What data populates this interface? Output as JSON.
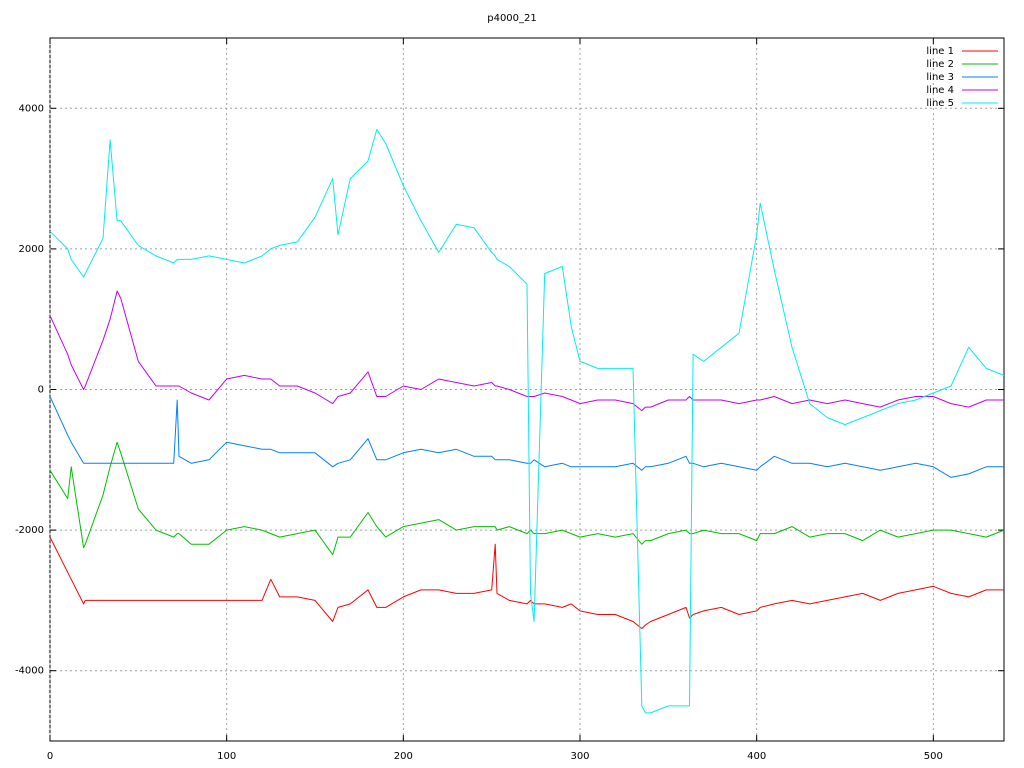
{
  "chart_data": {
    "type": "line",
    "title": "p4000_21",
    "x": [
      0,
      10,
      12,
      19,
      20,
      30,
      34,
      38,
      40,
      50,
      60,
      70,
      72,
      73,
      80,
      90,
      100,
      110,
      120,
      125,
      130,
      140,
      150,
      160,
      163,
      170,
      180,
      185,
      190,
      200,
      210,
      220,
      230,
      240,
      250,
      252,
      253,
      260,
      270,
      272,
      274,
      280,
      290,
      295,
      300,
      310,
      320,
      330,
      335,
      337,
      340,
      350,
      360,
      362,
      364,
      370,
      380,
      390,
      400,
      402,
      410,
      420,
      430,
      440,
      450,
      460,
      470,
      480,
      490,
      500,
      510,
      520,
      530,
      540
    ],
    "series": [
      {
        "name": "line 1",
        "color": "#ff0000",
        "values": [
          -2100,
          -2600,
          -2700,
          -3050,
          -3000,
          -3000,
          -3000,
          -3000,
          -3000,
          -3000,
          -3000,
          -3000,
          -3000,
          -3000,
          -3000,
          -3000,
          -3000,
          -3000,
          -3000,
          -2700,
          -2950,
          -2950,
          -3000,
          -3300,
          -3100,
          -3050,
          -2850,
          -3100,
          -3100,
          -2950,
          -2850,
          -2850,
          -2900,
          -2900,
          -2850,
          -2200,
          -2900,
          -3000,
          -3050,
          -3000,
          -3050,
          -3050,
          -3100,
          -3050,
          -3150,
          -3200,
          -3200,
          -3300,
          -3400,
          -3350,
          -3300,
          -3200,
          -3100,
          -3250,
          -3200,
          -3150,
          -3100,
          -3200,
          -3150,
          -3100,
          -3050,
          -3000,
          -3050,
          -3000,
          -2950,
          -2900,
          -3000,
          -2900,
          -2850,
          -2800,
          -2900,
          -2950,
          -2850,
          -2850
        ]
      },
      {
        "name": "line 2",
        "color": "#00c000",
        "values": [
          -1150,
          -1550,
          -1100,
          -2250,
          -2200,
          -1500,
          -1100,
          -750,
          -900,
          -1700,
          -2000,
          -2100,
          -2050,
          -2050,
          -2200,
          -2200,
          -2000,
          -1950,
          -2000,
          -2050,
          -2100,
          -2050,
          -2000,
          -2350,
          -2100,
          -2100,
          -1750,
          -1950,
          -2100,
          -1950,
          -1900,
          -1850,
          -2000,
          -1950,
          -1950,
          -1950,
          -2000,
          -1950,
          -2050,
          -2000,
          -2050,
          -2050,
          -2000,
          -2050,
          -2100,
          -2050,
          -2100,
          -2050,
          -2200,
          -2150,
          -2150,
          -2050,
          -2000,
          -2050,
          -2050,
          -2000,
          -2050,
          -2050,
          -2150,
          -2050,
          -2050,
          -1950,
          -2100,
          -2050,
          -2050,
          -2150,
          -2000,
          -2100,
          -2050,
          -2000,
          -2000,
          -2050,
          -2100,
          -2000
        ]
      },
      {
        "name": "line 3",
        "color": "#0080ff",
        "values": [
          -100,
          -650,
          -750,
          -1050,
          -1050,
          -1050,
          -1050,
          -1050,
          -1050,
          -1050,
          -1050,
          -1050,
          -150,
          -950,
          -1050,
          -1000,
          -750,
          -800,
          -850,
          -850,
          -900,
          -900,
          -900,
          -1100,
          -1050,
          -1000,
          -700,
          -1000,
          -1000,
          -900,
          -850,
          -900,
          -850,
          -950,
          -950,
          -1000,
          -1000,
          -1000,
          -1050,
          -1050,
          -1000,
          -1100,
          -1050,
          -1100,
          -1100,
          -1100,
          -1100,
          -1050,
          -1150,
          -1100,
          -1100,
          -1050,
          -950,
          -1050,
          -1050,
          -1100,
          -1050,
          -1100,
          -1150,
          -1100,
          -950,
          -1050,
          -1050,
          -1100,
          -1050,
          -1100,
          -1150,
          -1100,
          -1050,
          -1100,
          -1250,
          -1200,
          -1100,
          -1100
        ]
      },
      {
        "name": "line 4",
        "color": "#c000ff",
        "values": [
          1050,
          500,
          350,
          0,
          50,
          700,
          1000,
          1400,
          1300,
          400,
          50,
          50,
          50,
          50,
          -50,
          -150,
          150,
          200,
          150,
          150,
          50,
          50,
          -50,
          -200,
          -100,
          -50,
          250,
          -100,
          -100,
          50,
          0,
          150,
          100,
          50,
          100,
          50,
          50,
          0,
          -100,
          -100,
          -100,
          -50,
          -100,
          -150,
          -200,
          -150,
          -150,
          -200,
          -300,
          -250,
          -250,
          -150,
          -150,
          -100,
          -150,
          -150,
          -150,
          -200,
          -150,
          -150,
          -100,
          -200,
          -150,
          -200,
          -150,
          -200,
          -250,
          -150,
          -100,
          -100,
          -200,
          -250,
          -150,
          -150
        ]
      },
      {
        "name": "line 5",
        "color": "#00eeee",
        "values": [
          2250,
          2000,
          1850,
          1600,
          1650,
          2150,
          3550,
          2400,
          2400,
          2050,
          1900,
          1800,
          1850,
          1850,
          1850,
          1900,
          1850,
          1800,
          1900,
          2000,
          2050,
          2100,
          2450,
          3000,
          2200,
          3000,
          3250,
          3700,
          3500,
          2900,
          2400,
          1950,
          2350,
          2300,
          1950,
          1900,
          1850,
          1750,
          1500,
          -2900,
          -3300,
          1650,
          1750,
          900,
          400,
          300,
          300,
          300,
          -4500,
          -4600,
          -4600,
          -4500,
          -4500,
          -4500,
          500,
          400,
          600,
          800,
          2200,
          2650,
          1700,
          600,
          -200,
          -400,
          -500,
          -400,
          -300,
          -200,
          -150,
          -50,
          50,
          600,
          300,
          200
        ]
      }
    ],
    "xlim": [
      0,
      540
    ],
    "xticks": [
      0,
      100,
      200,
      300,
      400,
      500
    ],
    "ylim": [
      -5000,
      5000
    ],
    "yticks": [
      -4000,
      -2000,
      0,
      2000,
      4000
    ],
    "grid": true,
    "legend": "top right"
  }
}
